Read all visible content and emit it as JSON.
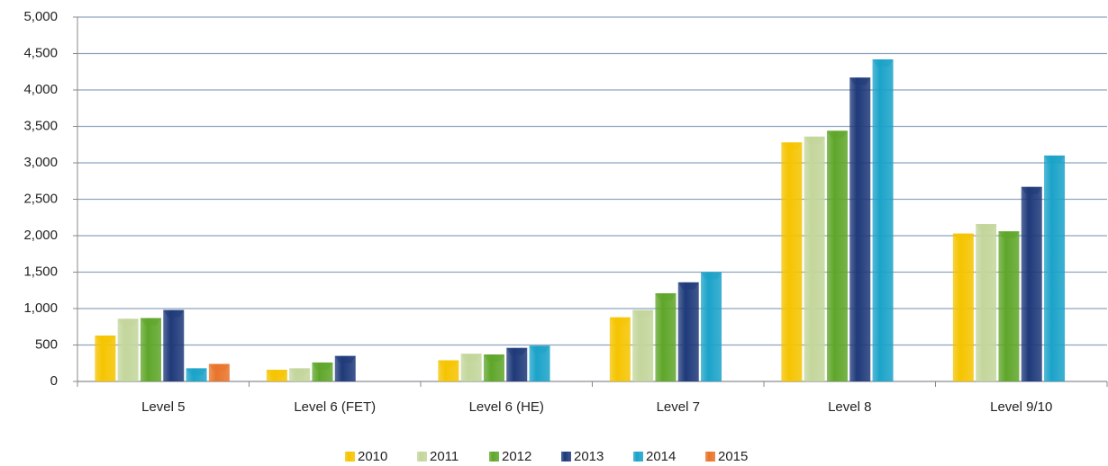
{
  "chart_data": {
    "type": "bar",
    "categories": [
      "Level 5",
      "Level 6 (FET)",
      "Level 6 (HE)",
      "Level 7",
      "Level 8",
      "Level 9/10"
    ],
    "series": [
      {
        "name": "2010",
        "color": "#f5c400",
        "values": [
          630,
          160,
          290,
          880,
          3280,
          2030
        ]
      },
      {
        "name": "2011",
        "color": "#c3d69b",
        "values": [
          860,
          180,
          380,
          980,
          3360,
          2160
        ]
      },
      {
        "name": "2012",
        "color": "#5fa62a",
        "values": [
          870,
          260,
          370,
          1210,
          3440,
          2060
        ]
      },
      {
        "name": "2013",
        "color": "#1f3a7a",
        "values": [
          980,
          350,
          460,
          1360,
          4170,
          2670
        ]
      },
      {
        "name": "2014",
        "color": "#1ba3c9",
        "values": [
          180,
          null,
          490,
          1500,
          4420,
          3100
        ]
      },
      {
        "name": "2015",
        "color": "#e8742a",
        "values": [
          240,
          null,
          null,
          null,
          null,
          null
        ]
      }
    ],
    "ylim": [
      0,
      5000
    ],
    "yticks": [
      0,
      500,
      {
        "value": 1000,
        "label": "1,000"
      },
      {
        "value": 1500,
        "label": "1,500"
      },
      {
        "value": 2000,
        "label": "2,000"
      },
      {
        "value": 2500,
        "label": "2,500"
      },
      {
        "value": 3000,
        "label": "3,000"
      },
      {
        "value": 3500,
        "label": "3,500"
      },
      {
        "value": 4000,
        "label": "4,000"
      },
      {
        "value": 4500,
        "label": "4,500"
      },
      {
        "value": 5000,
        "label": "5,000"
      }
    ],
    "grid": true,
    "legend": "bottom"
  }
}
